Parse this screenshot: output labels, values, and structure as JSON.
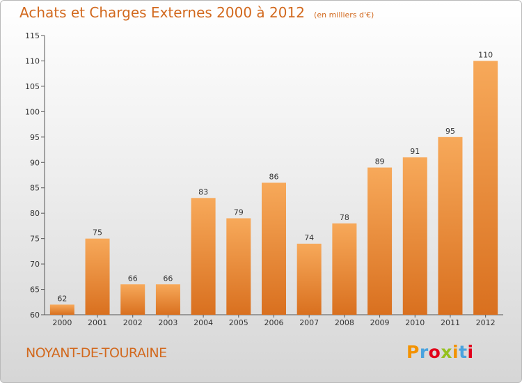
{
  "chart_data": {
    "type": "bar",
    "title": "Achats et Charges Externes 2000 à 2012",
    "subtitle": "(en milliers d'€)",
    "categories": [
      "2000",
      "2001",
      "2002",
      "2003",
      "2004",
      "2005",
      "2006",
      "2007",
      "2008",
      "2009",
      "2010",
      "2011",
      "2012"
    ],
    "values": [
      62,
      75,
      66,
      66,
      83,
      79,
      86,
      74,
      78,
      89,
      91,
      95,
      110
    ],
    "ylim": [
      60,
      115
    ],
    "yticks": [
      60,
      65,
      70,
      75,
      80,
      85,
      90,
      95,
      100,
      105,
      110,
      115
    ],
    "grid": false,
    "bar_color_top": "#f7a95a",
    "bar_color_bottom": "#d9701f"
  },
  "footer": {
    "commune": "NOYANT-DE-TOURAINE",
    "brand": "Proxiti",
    "brand_letter_colors": [
      "#f39200",
      "#4aa3df",
      "#e2001a",
      "#95c11f",
      "#f39200",
      "#4aa3df",
      "#e2001a"
    ]
  }
}
